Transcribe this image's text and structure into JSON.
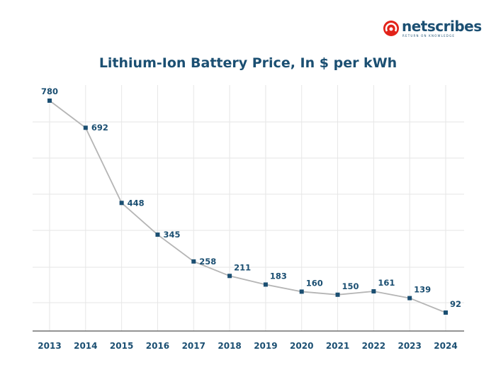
{
  "brand": {
    "name": "netscribes",
    "tagline": "RETURN ON KNOWLEDGE",
    "colors": {
      "accent": "#e2231a",
      "primary": "#1b4f72"
    }
  },
  "chart_data": {
    "type": "line",
    "title": "Lithium-Ion Battery Price, In $ per kWh",
    "xlabel": "",
    "ylabel": "",
    "categories": [
      "2013",
      "2014",
      "2015",
      "2016",
      "2017",
      "2018",
      "2019",
      "2020",
      "2021",
      "2022",
      "2023",
      "2024"
    ],
    "values": [
      780,
      692,
      448,
      345,
      258,
      211,
      183,
      160,
      150,
      161,
      139,
      92
    ],
    "ylim": [
      70,
      800
    ],
    "grid": true,
    "legend": "none",
    "colors": {
      "line": "#b5b5b5",
      "marker": "#1b4f72",
      "labels": "#1b4f72",
      "grid": "#e6e6e6",
      "axis": "#555555"
    }
  }
}
